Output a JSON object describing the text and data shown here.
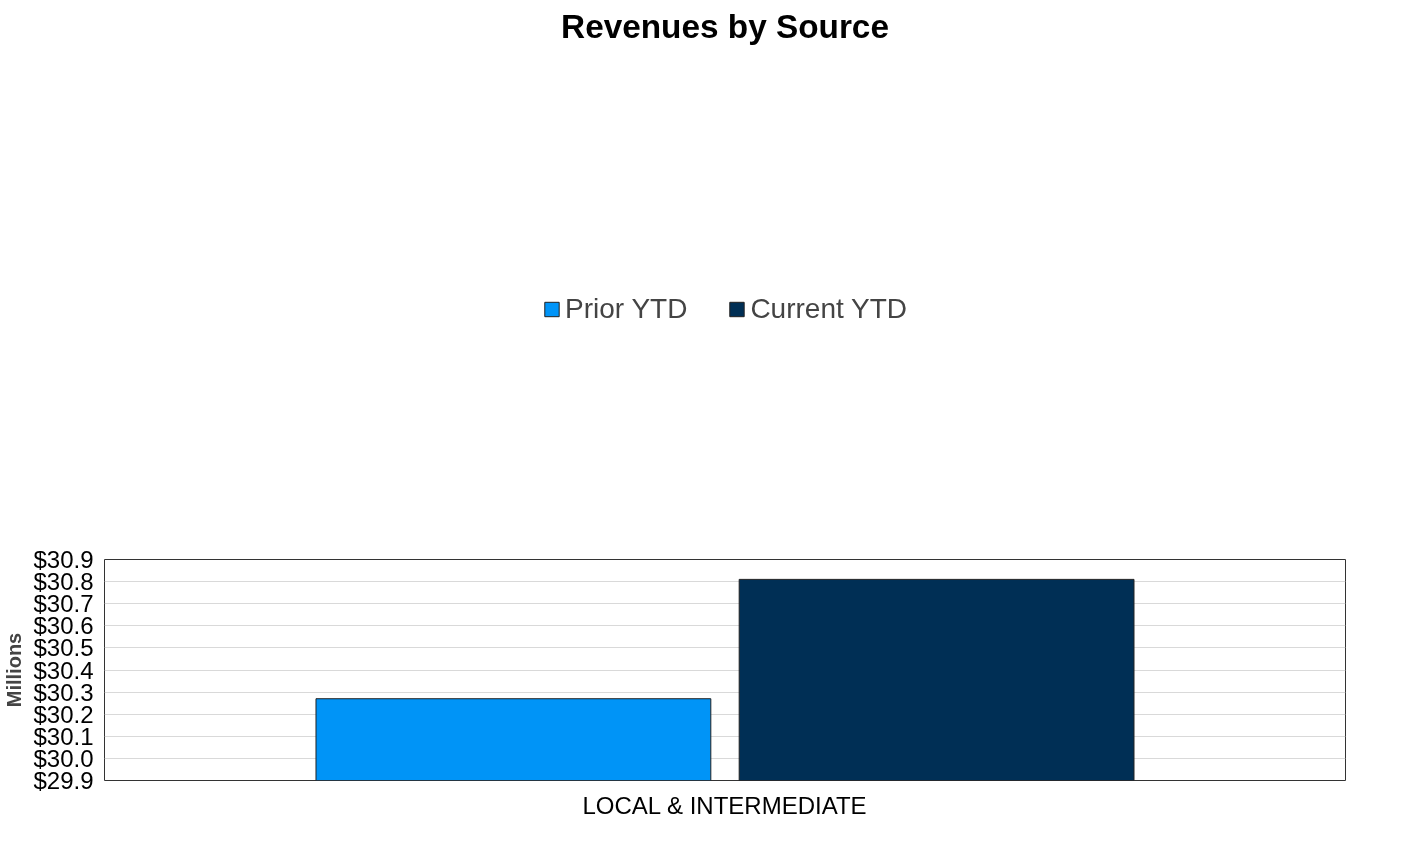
{
  "chart_data": {
    "type": "bar",
    "title": "Revenues by Source",
    "ylabel": "Millions",
    "categories": [
      "LOCAL & INTERMEDIATE"
    ],
    "series": [
      {
        "name": "Prior YTD",
        "color": "#0094f7",
        "values": [
          30.27
        ]
      },
      {
        "name": "Current YTD",
        "color": "#002f55",
        "values": [
          30.81
        ]
      }
    ],
    "ylim": [
      29.9,
      30.9
    ],
    "yticks": [
      {
        "value": 29.9,
        "label": "$29.9"
      },
      {
        "value": 30.0,
        "label": "$30.0"
      },
      {
        "value": 30.1,
        "label": "$30.1"
      },
      {
        "value": 30.2,
        "label": "$30.2"
      },
      {
        "value": 30.3,
        "label": "$30.3"
      },
      {
        "value": 30.4,
        "label": "$30.4"
      },
      {
        "value": 30.5,
        "label": "$30.5"
      },
      {
        "value": 30.6,
        "label": "$30.6"
      },
      {
        "value": 30.7,
        "label": "$30.7"
      },
      {
        "value": 30.8,
        "label": "$30.8"
      },
      {
        "value": 30.9,
        "label": "$30.9"
      }
    ],
    "grid": "y",
    "legend": "top"
  }
}
